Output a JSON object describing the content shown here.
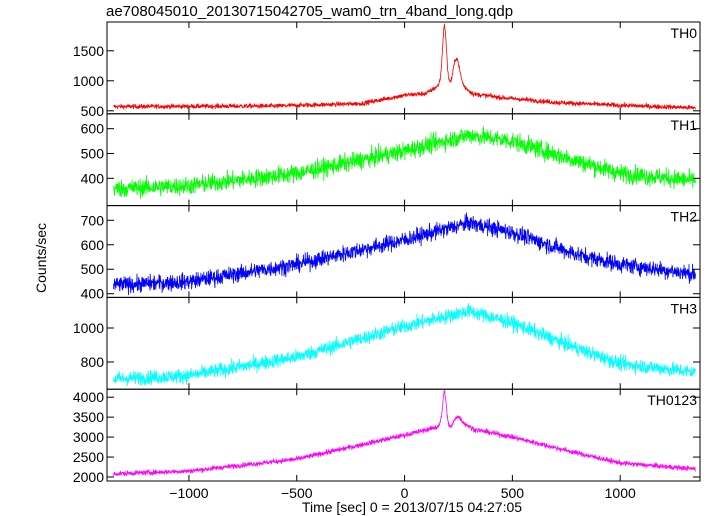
{
  "title": "ae708045010_20130715042705_wam0_trn_4band_long.qdp",
  "ylabel": "Counts/sec",
  "xlabel": "Time [sec] 0 = 2013/07/15 04:27:05",
  "chart_data": {
    "type": "line",
    "title": "ae708045010_20130715042705_wam0_trn_4band_long.qdp",
    "xlabel": "Time [sec] 0 = 2013/07/15 04:27:05",
    "ylabel": "Counts/sec",
    "xlim": [
      -1380,
      1370
    ],
    "xticks": [
      -1000,
      -500,
      0,
      500,
      1000
    ],
    "xtick_labels": [
      "−1000",
      "−500",
      "0",
      "500",
      "1000"
    ],
    "grid": false,
    "panels": [
      {
        "name": "TH0",
        "color": "#ff0000",
        "ylim": [
          450,
          1980
        ],
        "yticks": [
          500,
          1000,
          1500
        ],
        "baseline": [
          [
            -1350,
            570
          ],
          [
            -600,
            580
          ],
          [
            -200,
            620
          ],
          [
            0,
            760
          ],
          [
            100,
            790
          ],
          [
            150,
            900
          ],
          [
            185,
            1050
          ],
          [
            215,
            900
          ],
          [
            260,
            940
          ],
          [
            320,
            780
          ],
          [
            450,
            720
          ],
          [
            700,
            640
          ],
          [
            1000,
            590
          ],
          [
            1350,
            550
          ]
        ],
        "noise": 28,
        "spikes": [
          [
            185,
            1920,
            9
          ],
          [
            240,
            1380,
            14
          ]
        ]
      },
      {
        "name": "TH1",
        "color": "#00ff00",
        "ylim": [
          290,
          660
        ],
        "yticks": [
          400,
          500,
          600
        ],
        "baseline": [
          [
            -1350,
            358
          ],
          [
            -1000,
            370
          ],
          [
            -500,
            420
          ],
          [
            0,
            510
          ],
          [
            300,
            575
          ],
          [
            500,
            550
          ],
          [
            800,
            470
          ],
          [
            1000,
            420
          ],
          [
            1350,
            390
          ]
        ],
        "noise": 26,
        "spikes": []
      },
      {
        "name": "TH2",
        "color": "#0000ff",
        "ylim": [
          385,
          760
        ],
        "yticks": [
          400,
          500,
          600,
          700
        ],
        "baseline": [
          [
            -1350,
            435
          ],
          [
            -1000,
            450
          ],
          [
            -500,
            520
          ],
          [
            0,
            620
          ],
          [
            300,
            690
          ],
          [
            500,
            650
          ],
          [
            800,
            560
          ],
          [
            1000,
            520
          ],
          [
            1350,
            480
          ]
        ],
        "noise": 24,
        "spikes": []
      },
      {
        "name": "TH3",
        "color": "#00ffff",
        "ylim": [
          640,
          1180
        ],
        "yticks": [
          800,
          1000
        ],
        "baseline": [
          [
            -1350,
            700
          ],
          [
            -1000,
            720
          ],
          [
            -500,
            830
          ],
          [
            0,
            1010
          ],
          [
            300,
            1100
          ],
          [
            500,
            1030
          ],
          [
            800,
            880
          ],
          [
            1000,
            790
          ],
          [
            1350,
            740
          ]
        ],
        "noise": 30,
        "spikes": []
      },
      {
        "name": "TH0123",
        "color": "#ff00ff",
        "ylim": [
          1900,
          4200
        ],
        "yticks": [
          2000,
          2500,
          3000,
          3500,
          4000
        ],
        "baseline": [
          [
            -1350,
            2080
          ],
          [
            -1000,
            2150
          ],
          [
            -500,
            2450
          ],
          [
            0,
            3050
          ],
          [
            150,
            3250
          ],
          [
            185,
            3450
          ],
          [
            215,
            3200
          ],
          [
            260,
            3400
          ],
          [
            320,
            3200
          ],
          [
            500,
            3000
          ],
          [
            800,
            2600
          ],
          [
            1000,
            2350
          ],
          [
            1350,
            2200
          ]
        ],
        "noise": 45,
        "spikes": [
          [
            185,
            4150,
            8
          ],
          [
            240,
            3500,
            14
          ]
        ]
      }
    ]
  }
}
